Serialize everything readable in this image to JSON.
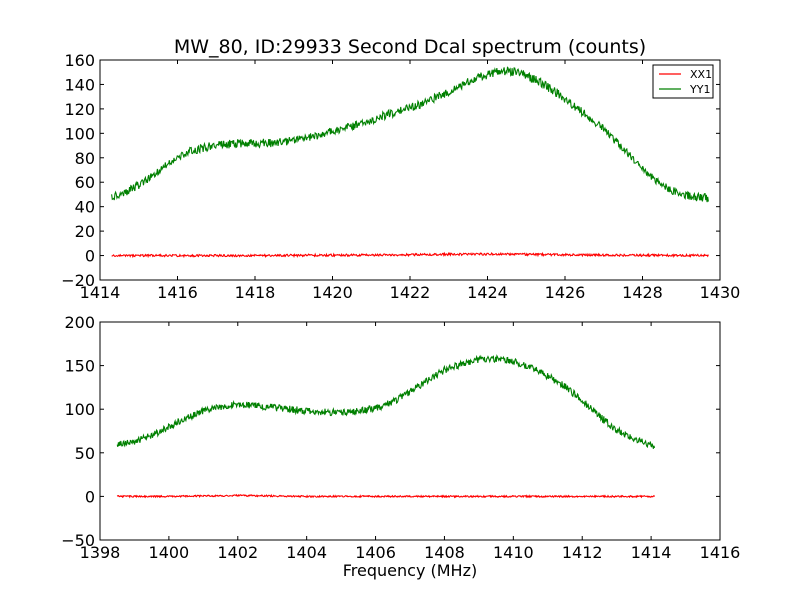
{
  "chart_data": [
    {
      "type": "line",
      "title": "MW_80, ID:29933 Second Dcal spectrum (counts)",
      "xlabel": "",
      "ylabel": "",
      "xlim": [
        1414,
        1430
      ],
      "ylim": [
        -20,
        160
      ],
      "xticks": [
        1414,
        1416,
        1418,
        1420,
        1422,
        1424,
        1426,
        1428,
        1430
      ],
      "yticks": [
        -20,
        0,
        20,
        40,
        60,
        80,
        100,
        120,
        140,
        160
      ],
      "grid": false,
      "legend": {
        "position": "top-right",
        "entries": [
          "XX1",
          "YY1"
        ]
      },
      "series": [
        {
          "name": "XX1",
          "color": "#ff0000",
          "noise": 0.9,
          "x": [
            1414.3,
            1416,
            1418,
            1420,
            1422,
            1423,
            1424,
            1425,
            1426,
            1428,
            1429.7
          ],
          "y": [
            0,
            0,
            0,
            0.3,
            0.6,
            1,
            1.2,
            1,
            0.6,
            0.2,
            0
          ]
        },
        {
          "name": "YY1",
          "color": "#008000",
          "noise": 3.5,
          "x": [
            1414.3,
            1414.8,
            1415.3,
            1415.8,
            1416.3,
            1416.8,
            1417.3,
            1417.8,
            1418.3,
            1418.8,
            1419.3,
            1419.8,
            1420.3,
            1420.8,
            1421.3,
            1421.8,
            1422.3,
            1422.8,
            1423.3,
            1423.8,
            1424.3,
            1424.8,
            1425.3,
            1425.8,
            1426.3,
            1426.8,
            1427.3,
            1427.8,
            1428.3,
            1428.8,
            1429.3,
            1429.7
          ],
          "y": [
            48,
            54,
            64,
            76,
            85,
            89,
            91,
            92,
            92,
            93,
            96,
            100,
            104,
            108,
            114,
            119,
            124,
            131,
            139,
            146,
            151,
            150,
            143,
            133,
            121,
            109,
            94,
            78,
            62,
            53,
            48,
            47
          ]
        }
      ]
    },
    {
      "type": "line",
      "title": "",
      "xlabel": "Frequency (MHz)",
      "ylabel": "",
      "xlim": [
        1398,
        1416
      ],
      "ylim": [
        -50,
        200
      ],
      "xticks": [
        1398,
        1400,
        1402,
        1404,
        1406,
        1408,
        1410,
        1412,
        1414,
        1416
      ],
      "yticks": [
        -50,
        0,
        50,
        100,
        150,
        200
      ],
      "grid": false,
      "series": [
        {
          "name": "XX1",
          "color": "#ff0000",
          "noise": 0.9,
          "x": [
            1398.5,
            1400,
            1402,
            1404,
            1406,
            1408,
            1410,
            1412,
            1414.1
          ],
          "y": [
            0,
            0,
            1,
            0,
            0,
            0,
            0,
            0,
            0
          ]
        },
        {
          "name": "YY1",
          "color": "#008000",
          "noise": 4,
          "x": [
            1398.5,
            1399,
            1399.5,
            1400,
            1400.5,
            1401,
            1401.5,
            1402,
            1402.5,
            1403,
            1403.5,
            1404,
            1404.5,
            1405,
            1405.5,
            1406,
            1406.5,
            1407,
            1407.5,
            1408,
            1408.5,
            1409,
            1409.5,
            1410,
            1410.5,
            1411,
            1411.5,
            1412,
            1412.5,
            1413,
            1413.5,
            1414.1
          ],
          "y": [
            60,
            62,
            70,
            80,
            90,
            98,
            103,
            105,
            104,
            102,
            100,
            98,
            97,
            96,
            98,
            101,
            108,
            120,
            133,
            145,
            152,
            157,
            158,
            155,
            148,
            138,
            126,
            110,
            92,
            76,
            65,
            58
          ]
        }
      ]
    }
  ]
}
